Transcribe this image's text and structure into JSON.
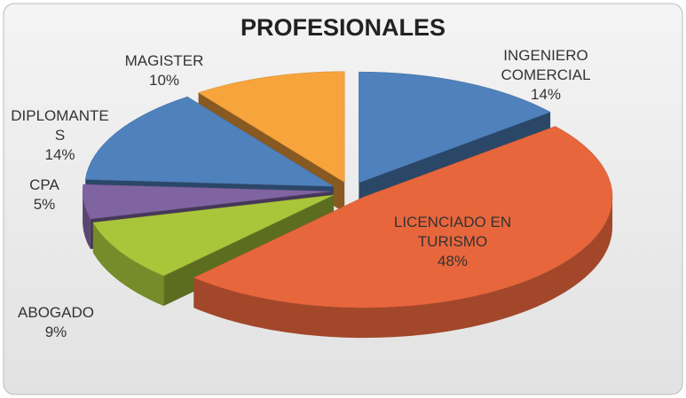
{
  "chart_data": {
    "type": "pie3d",
    "title": "PROFESIONALES",
    "categories": [
      "INGENIERO COMERCIAL",
      "LICENCIADO EN TURISMO",
      "ABOGADO",
      "CPA",
      "DIPLOMANTES",
      "MAGISTER"
    ],
    "values": [
      14,
      48,
      9,
      5,
      14,
      10
    ],
    "value_labels": [
      "14%",
      "48%",
      "9%",
      "5%",
      "14%",
      "10%"
    ],
    "colors": [
      "#4f81bd",
      "#e8663c",
      "#a9c63b",
      "#8064a2",
      "#4f81bd",
      "#f7a43c"
    ]
  }
}
